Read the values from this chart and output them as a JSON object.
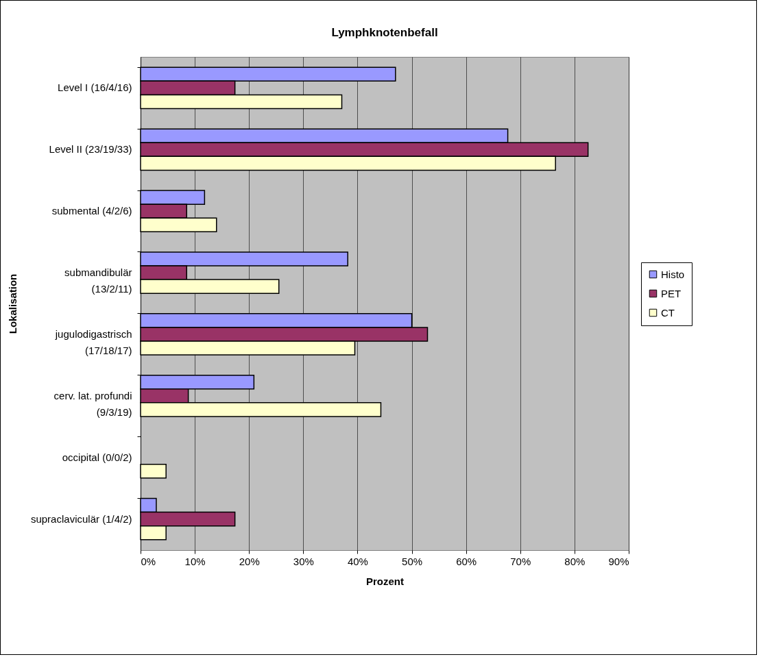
{
  "chart_data": {
    "type": "bar",
    "orientation": "horizontal",
    "title": "Lymphknotenbefall",
    "xlabel": "Prozent",
    "ylabel": "Lokalisation",
    "categories": [
      "Level I (16/4/16)",
      "Level II (23/19/33)",
      "submental (4/2/6)",
      "submandibulär\n(13/2/11)",
      "jugulodigastrisch\n(17/18/17)",
      "cerv. lat. profundi\n(9/3/19)",
      "occipital (0/0/2)",
      "supraclaviculär (1/4/2)"
    ],
    "series": [
      {
        "name": "Histo",
        "color": "#9999ff",
        "values": [
          47.0,
          67.7,
          11.8,
          38.2,
          50.0,
          20.9,
          0,
          2.9
        ]
      },
      {
        "name": "PET",
        "color": "#993366",
        "values": [
          17.4,
          82.5,
          8.5,
          8.5,
          52.9,
          8.8,
          0,
          17.4
        ]
      },
      {
        "name": "CT",
        "color": "#ffffcc",
        "values": [
          37.1,
          76.5,
          14.0,
          25.5,
          39.5,
          44.3,
          4.7,
          4.7
        ]
      }
    ],
    "xlim": [
      0,
      90
    ],
    "xticks": [
      {
        "value": 0,
        "label": "0%"
      },
      {
        "value": 10,
        "label": "10%"
      },
      {
        "value": 20,
        "label": "20%"
      },
      {
        "value": 30,
        "label": "30%"
      },
      {
        "value": 40,
        "label": "40%"
      },
      {
        "value": 50,
        "label": "50%"
      },
      {
        "value": 60,
        "label": "60%"
      },
      {
        "value": 70,
        "label": "70%"
      },
      {
        "value": 80,
        "label": "80%"
      },
      {
        "value": 90,
        "label": "90%"
      }
    ],
    "grid": "x",
    "legend": "right"
  }
}
